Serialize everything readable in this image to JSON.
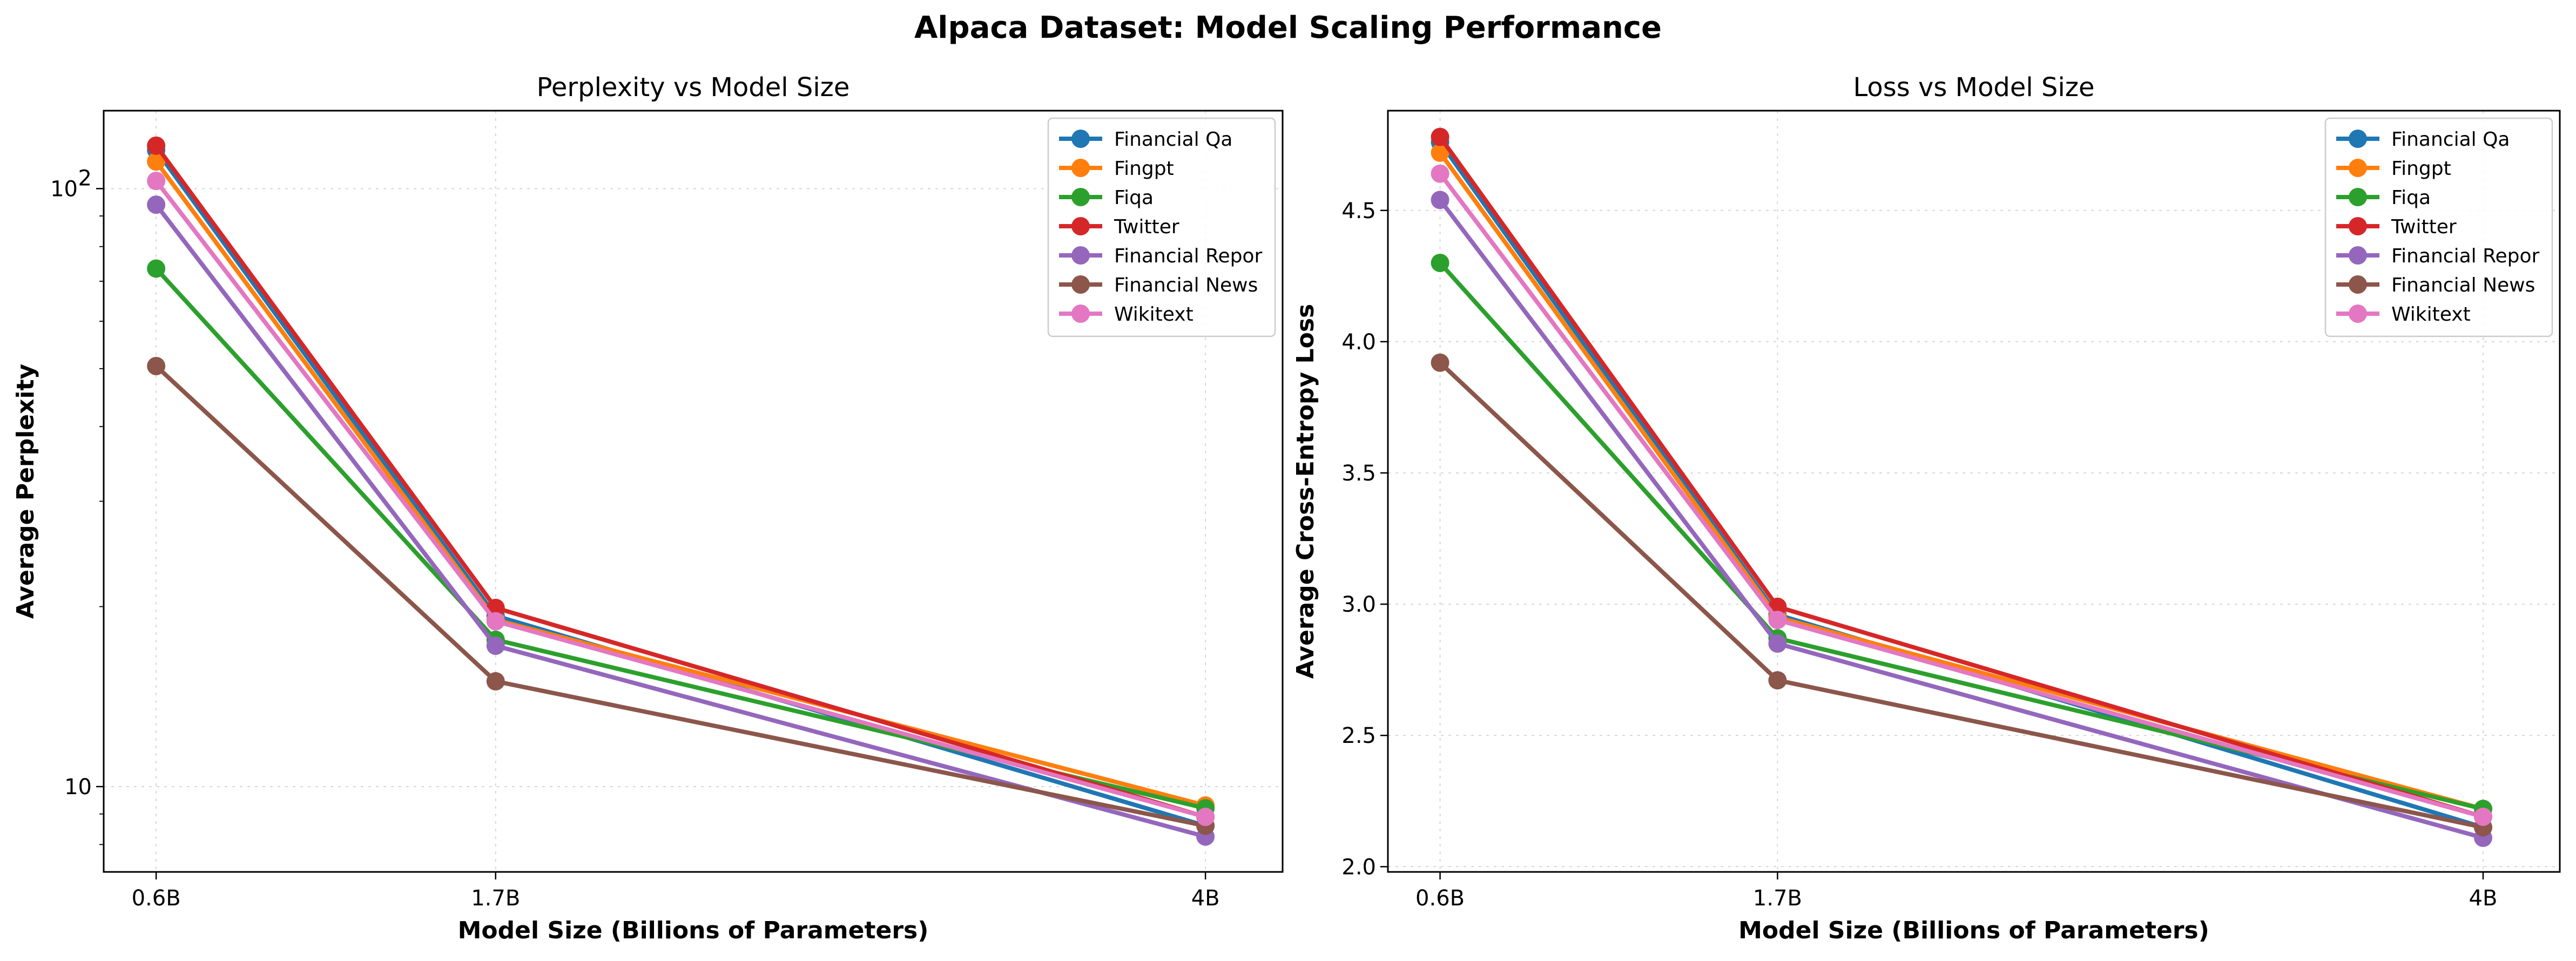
{
  "figure_title": "Alpaca Dataset: Model Scaling Performance",
  "colors": {
    "Financial Qa": "#1f77b4",
    "Fingpt": "#ff7f0e",
    "Fiqa": "#2ca02c",
    "Twitter": "#d62728",
    "Financial Repor": "#9467bd",
    "Financial News": "#8c564b",
    "Wikitext": "#e377c2"
  },
  "chart_data": [
    {
      "type": "line",
      "title": "Perplexity vs Model Size",
      "xlabel": "Model Size (Billions of Parameters)",
      "ylabel": "Average Perplexity",
      "x": [
        0.6,
        1.7,
        4
      ],
      "x_tick_labels": [
        "0.6B",
        "1.7B",
        "4B"
      ],
      "xlim": [
        0.43,
        4.25
      ],
      "yscale": "log",
      "ylim": [
        7.2,
        135
      ],
      "y_ticks": [
        10,
        100
      ],
      "y_tick_labels": [
        "10",
        "10²"
      ],
      "grid": true,
      "legend": "top-right",
      "series": [
        {
          "name": "Financial Qa",
          "values": [
            116,
            19.3,
            8.6
          ]
        },
        {
          "name": "Fingpt",
          "values": [
            111,
            19.0,
            9.3
          ]
        },
        {
          "name": "Fiqa",
          "values": [
            73.5,
            17.6,
            9.2
          ]
        },
        {
          "name": "Twitter",
          "values": [
            118,
            19.9,
            8.9
          ]
        },
        {
          "name": "Financial Repor",
          "values": [
            94,
            17.2,
            8.25
          ]
        },
        {
          "name": "Financial News",
          "values": [
            50.5,
            15.0,
            8.6
          ]
        },
        {
          "name": "Wikitext",
          "values": [
            103,
            18.9,
            8.9
          ]
        }
      ]
    },
    {
      "type": "line",
      "title": "Loss vs Model Size",
      "xlabel": "Model Size (Billions of Parameters)",
      "ylabel": "Average Cross-Entropy Loss",
      "x": [
        0.6,
        1.7,
        4
      ],
      "x_tick_labels": [
        "0.6B",
        "1.7B",
        "4B"
      ],
      "xlim": [
        0.43,
        4.25
      ],
      "ylim": [
        1.98,
        4.88
      ],
      "y_ticks": [
        2.0,
        2.5,
        3.0,
        3.5,
        4.0,
        4.5
      ],
      "y_tick_labels": [
        "2.0",
        "2.5",
        "3.0",
        "3.5",
        "4.0",
        "4.5"
      ],
      "grid": true,
      "legend": "top-right",
      "series": [
        {
          "name": "Financial Qa",
          "values": [
            4.76,
            2.96,
            2.15
          ]
        },
        {
          "name": "Fingpt",
          "values": [
            4.72,
            2.95,
            2.22
          ]
        },
        {
          "name": "Fiqa",
          "values": [
            4.3,
            2.87,
            2.22
          ]
        },
        {
          "name": "Twitter",
          "values": [
            4.78,
            2.99,
            2.19
          ]
        },
        {
          "name": "Financial Repor",
          "values": [
            4.54,
            2.85,
            2.11
          ]
        },
        {
          "name": "Financial News",
          "values": [
            3.92,
            2.71,
            2.15
          ]
        },
        {
          "name": "Wikitext",
          "values": [
            4.64,
            2.94,
            2.19
          ]
        }
      ]
    }
  ]
}
